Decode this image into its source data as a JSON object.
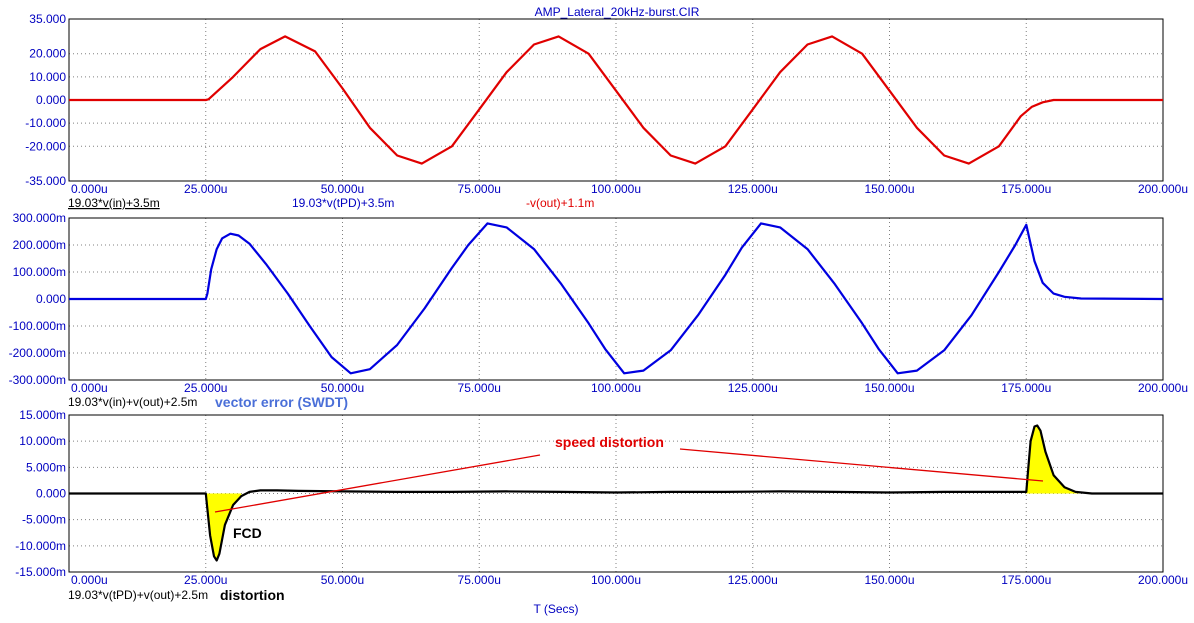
{
  "title": "AMP_Lateral_20kHz-burst.CIR",
  "xlabel": "T (Secs)",
  "colors": {
    "axis_text": "#0000c0",
    "grid": "#808080",
    "red": "#e00000",
    "blue": "#0000e0",
    "black": "#000000",
    "fill": "#ffff00",
    "annot_red": "#e00000",
    "annot_blue": "#4a6fd8"
  },
  "chart_data": [
    {
      "type": "line",
      "xlim": [
        0,
        200
      ],
      "ylim": [
        -35,
        35
      ],
      "x_ticks": [
        "0.000u",
        "25.000u",
        "50.000u",
        "75.000u",
        "100.000u",
        "125.000u",
        "150.000u",
        "175.000u",
        "200.000u"
      ],
      "y_ticks": [
        {
          "v": 35,
          "label": "35.000"
        },
        {
          "v": 20,
          "label": "20.000"
        },
        {
          "v": 10,
          "label": "10.000"
        },
        {
          "v": 0,
          "label": "0.000"
        },
        {
          "v": -10,
          "label": "-10.000"
        },
        {
          "v": -20,
          "label": "-20.000"
        },
        {
          "v": -35,
          "label": "-35.000"
        }
      ],
      "legend": [
        "19.03*v(in)+3.5m",
        "19.03*v(tPD)+3.5m",
        "-v(out)+1.1m"
      ],
      "legend_colors": [
        "#000000",
        "#0000c0",
        "#e00000"
      ],
      "series": [
        {
          "name": "-v(out)+1.1m",
          "color": "#e00000",
          "x": [
            0,
            25,
            25.5,
            30,
            35,
            39.5,
            45,
            50,
            55,
            60,
            64.5,
            70,
            75,
            80,
            85,
            89.5,
            95,
            100,
            105,
            110,
            114.5,
            120,
            125,
            130,
            135,
            139.5,
            145,
            150,
            155,
            160,
            164.5,
            170,
            174,
            176,
            178,
            180,
            200
          ],
          "y": [
            0,
            0,
            0.3,
            10,
            22,
            27.5,
            21,
            5,
            -12,
            -24,
            -27.5,
            -20,
            -4,
            12,
            24,
            27.5,
            20,
            4,
            -12,
            -24,
            -27.5,
            -20,
            -4,
            12,
            24,
            27.5,
            20,
            4,
            -12,
            -24,
            -27.5,
            -20,
            -7,
            -3,
            -1,
            0,
            0
          ]
        }
      ]
    },
    {
      "type": "line",
      "xlim": [
        0,
        200
      ],
      "ylim": [
        -300,
        300
      ],
      "x_ticks": [
        "0.000u",
        "25.000u",
        "50.000u",
        "75.000u",
        "100.000u",
        "125.000u",
        "150.000u",
        "175.000u",
        "200.000u"
      ],
      "y_ticks": [
        {
          "v": 300,
          "label": "300.000m"
        },
        {
          "v": 200,
          "label": "200.000m"
        },
        {
          "v": 100,
          "label": "100.000m"
        },
        {
          "v": 0,
          "label": "0.000"
        },
        {
          "v": -100,
          "label": "-100.000m"
        },
        {
          "v": -200,
          "label": "-200.000m"
        },
        {
          "v": -300,
          "label": "-300.000m"
        }
      ],
      "legend": [
        "19.03*v(in)+v(out)+2.5m"
      ],
      "annotation": "vector error (SWDT)",
      "series": [
        {
          "name": "19.03*v(in)+v(out)+2.5m",
          "color": "#0000e0",
          "x": [
            0,
            25,
            25.3,
            26,
            27,
            28,
            29.5,
            31,
            33,
            36,
            40,
            44,
            48,
            51.5,
            55,
            60,
            65,
            70,
            73,
            76.5,
            80,
            85,
            90,
            95,
            98,
            101.5,
            105,
            110,
            115,
            120,
            123,
            126.5,
            130,
            135,
            140,
            145,
            148,
            151.5,
            155,
            160,
            165,
            170,
            173,
            175,
            175.5,
            176.5,
            178,
            180,
            182,
            185,
            200
          ],
          "y": [
            0,
            0,
            20,
            110,
            185,
            225,
            242,
            235,
            205,
            130,
            20,
            -100,
            -215,
            -275,
            -260,
            -170,
            -35,
            115,
            200,
            280,
            265,
            185,
            55,
            -90,
            -185,
            -275,
            -265,
            -190,
            -60,
            90,
            190,
            280,
            265,
            185,
            55,
            -90,
            -185,
            -275,
            -265,
            -190,
            -60,
            100,
            200,
            275,
            230,
            140,
            60,
            20,
            8,
            2,
            0
          ]
        }
      ]
    },
    {
      "type": "line",
      "xlim": [
        0,
        200
      ],
      "ylim": [
        -15,
        15
      ],
      "x_ticks": [
        "0.000u",
        "25.000u",
        "50.000u",
        "75.000u",
        "100.000u",
        "125.000u",
        "150.000u",
        "175.000u",
        "200.000u"
      ],
      "y_ticks": [
        {
          "v": 15,
          "label": "15.000m"
        },
        {
          "v": 10,
          "label": "10.000m"
        },
        {
          "v": 5,
          "label": "5.000m"
        },
        {
          "v": 0,
          "label": "0.000"
        },
        {
          "v": -5,
          "label": "-5.000m"
        },
        {
          "v": -10,
          "label": "-10.000m"
        },
        {
          "v": -15,
          "label": "-15.000m"
        }
      ],
      "legend": [
        "19.03*v(tPD)+v(out)+2.5m"
      ],
      "annotation": "distortion",
      "labels": {
        "speed": "speed distortion",
        "fcd": "FCD"
      },
      "series": [
        {
          "name": "19.03*v(tPD)+v(out)+2.5m",
          "color": "#000000",
          "x": [
            0,
            25,
            25.3,
            25.8,
            26.5,
            27,
            27.5,
            28.5,
            30,
            31.5,
            33,
            35,
            38,
            42,
            50,
            60,
            70,
            80,
            90,
            100,
            110,
            120,
            130,
            140,
            150,
            160,
            170,
            175,
            175.3,
            175.8,
            176.5,
            177,
            177.6,
            178.5,
            180,
            182,
            184,
            187,
            200
          ],
          "y": [
            0,
            0,
            -3,
            -8,
            -12,
            -12.8,
            -11.5,
            -6,
            -2.2,
            -0.5,
            0.3,
            0.6,
            0.6,
            0.5,
            0.4,
            0.3,
            0.3,
            0.4,
            0.3,
            0.2,
            0.3,
            0.3,
            0.4,
            0.3,
            0.2,
            0.3,
            0.3,
            0.3,
            4,
            10,
            12.8,
            13,
            12,
            8,
            3.5,
            1.2,
            0.3,
            0,
            0
          ]
        }
      ]
    }
  ]
}
